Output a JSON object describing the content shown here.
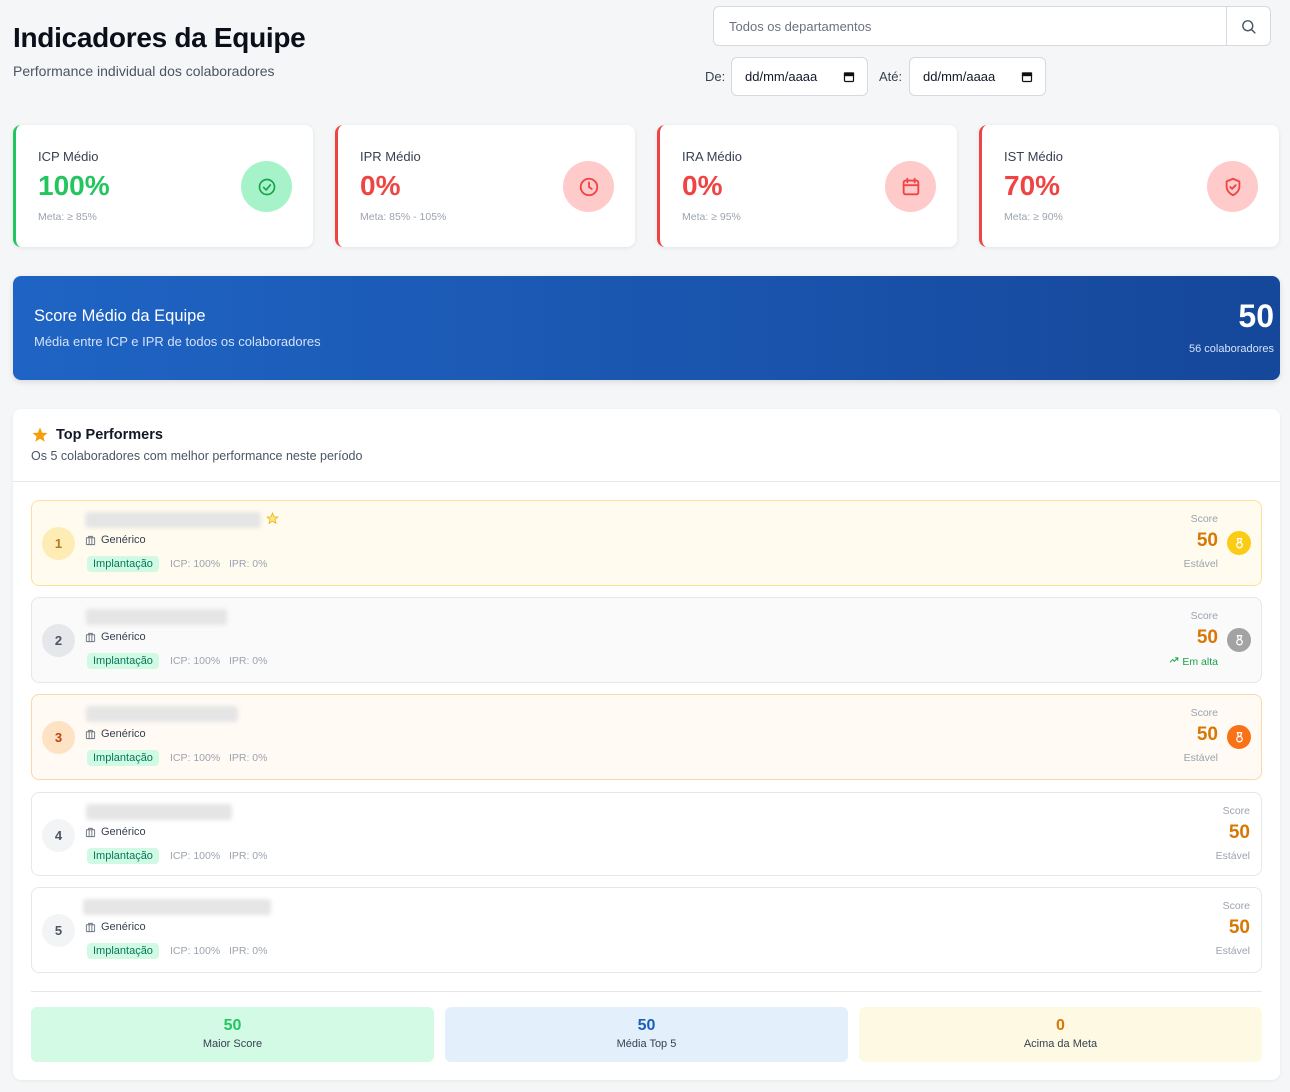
{
  "header": {
    "title": "Indicadores da Equipe",
    "subtitle": "Performance individual dos colaboradores"
  },
  "filters": {
    "department_placeholder": "Todos os departamentos",
    "from_label": "De:",
    "from_value": "dd/mm/aaaa",
    "to_label": "Até:",
    "to_value": "dd/mm/aaaa"
  },
  "kpis": [
    {
      "label": "ICP Médio",
      "value": "100%",
      "meta": "Meta: ≥ 85%",
      "status_color": "#22c55e",
      "icon": "check-circle-icon"
    },
    {
      "label": "IPR Médio",
      "value": "0%",
      "meta": "Meta: 85% - 105%",
      "status_color": "#ef4444",
      "icon": "clock-icon"
    },
    {
      "label": "IRA Médio",
      "value": "0%",
      "meta": "Meta: ≥ 95%",
      "status_color": "#ef4444",
      "icon": "calendar-icon"
    },
    {
      "label": "IST Médio",
      "value": "70%",
      "meta": "Meta: ≥ 90%",
      "status_color": "#ef4444",
      "icon": "shield-check-icon"
    }
  ],
  "score_banner": {
    "title": "Score Médio da Equipe",
    "description": "Média entre ICP e IPR de todos os colaboradores",
    "score": "50",
    "count_text": "56 colaboradores"
  },
  "top_performers": {
    "title": "Top Performers",
    "subtitle": "Os 5 colaboradores com melhor performance neste período",
    "score_label": "Score",
    "rows": [
      {
        "rank": "1",
        "department": "Genérico",
        "badge": "Implantação",
        "icp": "ICP: 100%",
        "ipr": "IPR: 0%",
        "score": "50",
        "trend": "Estável",
        "medal": "gold"
      },
      {
        "rank": "2",
        "department": "Genérico",
        "badge": "Implantação",
        "icp": "ICP: 100%",
        "ipr": "IPR: 0%",
        "score": "50",
        "trend": "Em alta",
        "medal": "silver"
      },
      {
        "rank": "3",
        "department": "Genérico",
        "badge": "Implantação",
        "icp": "ICP: 100%",
        "ipr": "IPR: 0%",
        "score": "50",
        "trend": "Estável",
        "medal": "bronze"
      },
      {
        "rank": "4",
        "department": "Genérico",
        "badge": "Implantação",
        "icp": "ICP: 100%",
        "ipr": "IPR: 0%",
        "score": "50",
        "trend": "Estável",
        "medal": "none"
      },
      {
        "rank": "5",
        "department": "Genérico",
        "badge": "Implantação",
        "icp": "ICP: 100%",
        "ipr": "IPR: 0%",
        "score": "50",
        "trend": "Estável",
        "medal": "none"
      }
    ]
  },
  "summary": [
    {
      "value": "50",
      "label": "Maior Score",
      "color": "#22c55e",
      "bg": "#d3fae4"
    },
    {
      "value": "50",
      "label": "Média Top 5",
      "color": "#1d5fb8",
      "bg": "#e3f0fc"
    },
    {
      "value": "0",
      "label": "Acima da Meta",
      "color": "#d97706",
      "bg": "#fef9e3"
    }
  ]
}
